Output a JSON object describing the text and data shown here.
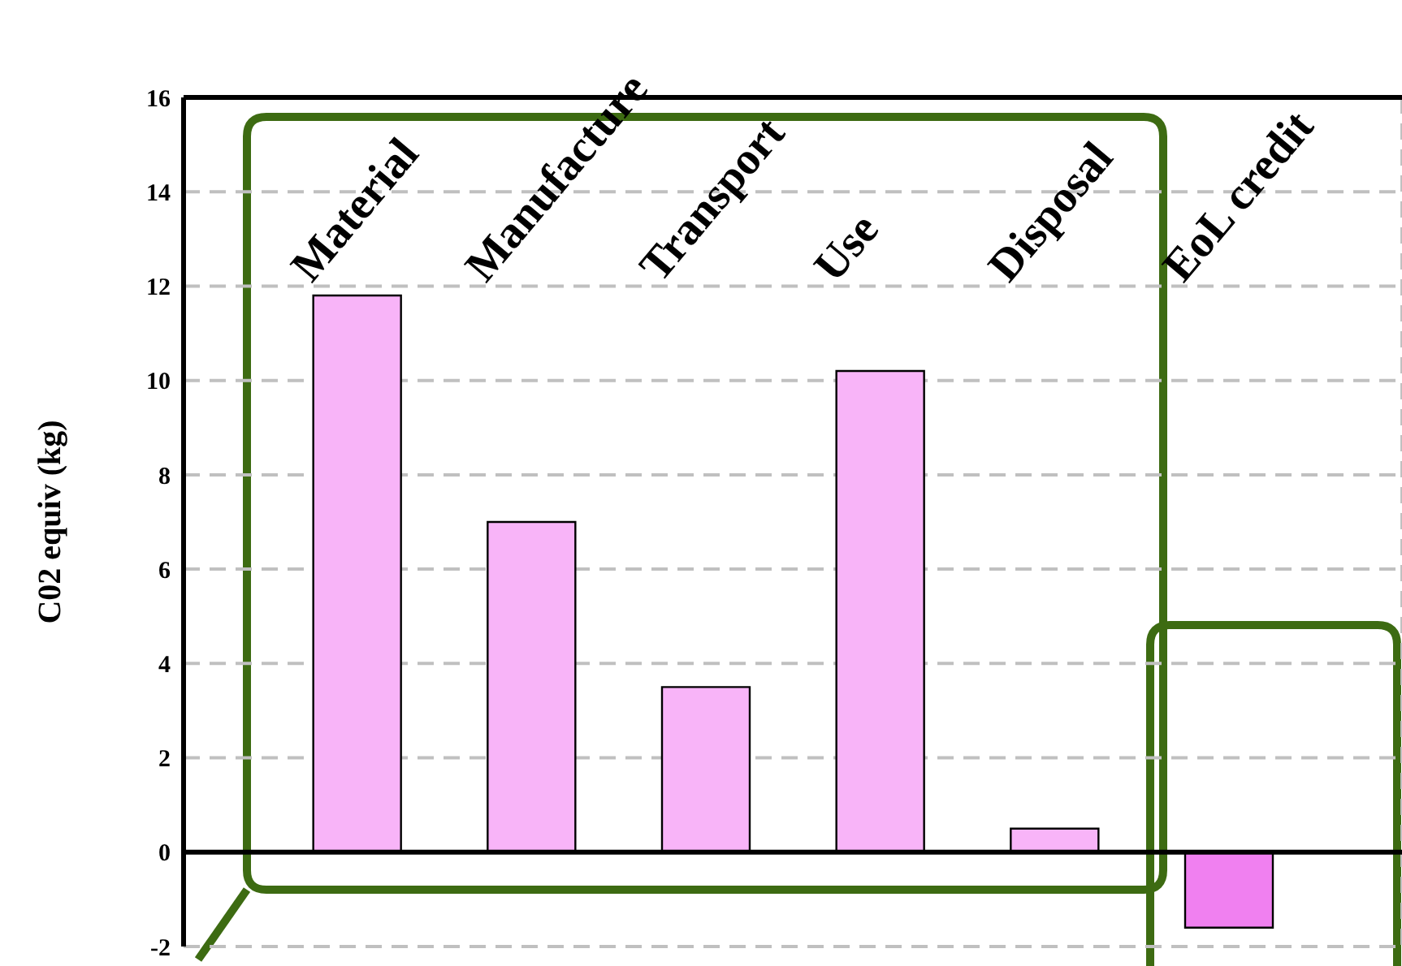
{
  "chart_data": {
    "type": "bar",
    "categories": [
      "Material",
      "Manufacture",
      "Transport",
      "Use",
      "Disposal",
      "EoL credit"
    ],
    "values": [
      11.8,
      7.0,
      3.5,
      10.2,
      0.5,
      -1.6
    ],
    "colors": [
      "#f8b4f8",
      "#f8b4f8",
      "#f8b4f8",
      "#f8b4f8",
      "#f8b4f8",
      "#f080f0"
    ],
    "ylabel": "C02 equiv (kg)",
    "ylim": [
      -2,
      16
    ],
    "yticks": [
      -2,
      0,
      2,
      4,
      6,
      8,
      10,
      12,
      14,
      16
    ],
    "grid": true
  }
}
